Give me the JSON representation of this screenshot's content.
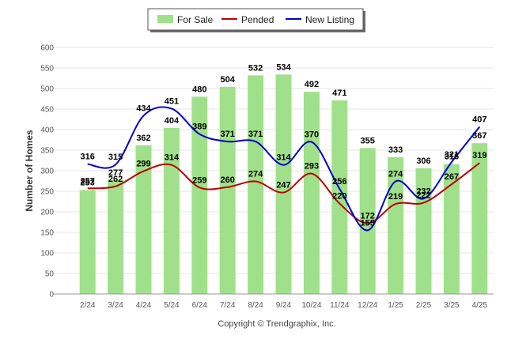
{
  "chart_data": {
    "type": "bar",
    "categories": [
      "2/24",
      "3/24",
      "4/24",
      "5/24",
      "6/24",
      "7/24",
      "8/24",
      "9/24",
      "10/24",
      "11/24",
      "12/24",
      "1/25",
      "2/25",
      "3/25",
      "4/25"
    ],
    "series": [
      {
        "name": "For Sale",
        "type": "bar",
        "color": "#a0e08a",
        "values": [
          253,
          277,
          362,
          404,
          480,
          504,
          532,
          534,
          492,
          471,
          355,
          333,
          306,
          316,
          367
        ]
      },
      {
        "name": "Pended",
        "type": "line",
        "color": "#bb0000",
        "values": [
          257,
          262,
          299,
          314,
          259,
          260,
          274,
          247,
          293,
          220,
          172,
          219,
          222,
          267,
          319
        ]
      },
      {
        "name": "New Listing",
        "type": "line",
        "color": "#0000cc",
        "values": [
          316,
          315,
          434,
          451,
          389,
          371,
          371,
          314,
          370,
          256,
          155,
          274,
          232,
          321,
          407
        ]
      }
    ],
    "ylabel": "Number of Homes",
    "ylim": [
      0,
      600
    ],
    "yticks": [
      0,
      50,
      100,
      150,
      200,
      250,
      300,
      350,
      400,
      450,
      500,
      550,
      600
    ],
    "legend_position": "top-center",
    "grid": true,
    "footer": "Copyright © Trendgraphix, Inc."
  }
}
